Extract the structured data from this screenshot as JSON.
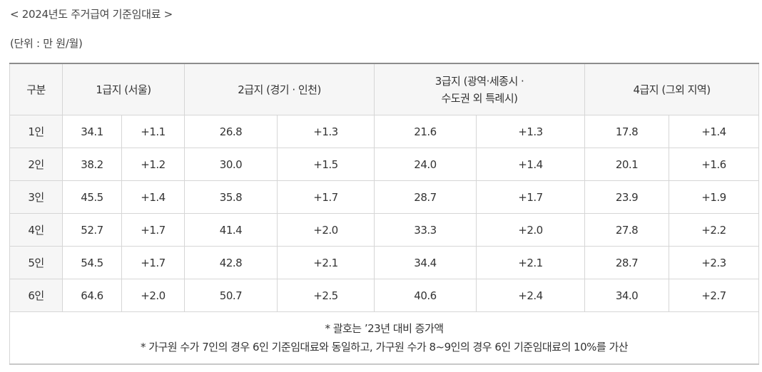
{
  "title": "< 2024년도 주거급여 기준임대료 >",
  "unit": "(단위 : 만 원/월)",
  "header": {
    "category": "구분",
    "grade1": "1급지 (서울)",
    "grade2": "2급지 (경기 · 인천)",
    "grade3_line1": "3급지 (광역·세종시 ·",
    "grade3_line2": "수도권 외 특례시)",
    "grade4": "4급지 (그외 지역)"
  },
  "rows": [
    {
      "label": "1인",
      "g1": "34.1",
      "g1d": "+1.1",
      "g2": "26.8",
      "g2d": "+1.3",
      "g3": "21.6",
      "g3d": "+1.3",
      "g4": "17.8",
      "g4d": "+1.4"
    },
    {
      "label": "2인",
      "g1": "38.2",
      "g1d": "+1.2",
      "g2": "30.0",
      "g2d": "+1.5",
      "g3": "24.0",
      "g3d": "+1.4",
      "g4": "20.1",
      "g4d": "+1.6"
    },
    {
      "label": "3인",
      "g1": "45.5",
      "g1d": "+1.4",
      "g2": "35.8",
      "g2d": "+1.7",
      "g3": "28.7",
      "g3d": "+1.7",
      "g4": "23.9",
      "g4d": "+1.9"
    },
    {
      "label": "4인",
      "g1": "52.7",
      "g1d": "+1.7",
      "g2": "41.4",
      "g2d": "+2.0",
      "g3": "33.3",
      "g3d": "+2.0",
      "g4": "27.8",
      "g4d": "+2.2"
    },
    {
      "label": "5인",
      "g1": "54.5",
      "g1d": "+1.7",
      "g2": "42.8",
      "g2d": "+2.1",
      "g3": "34.4",
      "g3d": "+2.1",
      "g4": "28.7",
      "g4d": "+2.3"
    },
    {
      "label": "6인",
      "g1": "64.6",
      "g1d": "+2.0",
      "g2": "50.7",
      "g2d": "+2.5",
      "g3": "40.6",
      "g3d": "+2.4",
      "g4": "34.0",
      "g4d": "+2.7"
    }
  ],
  "notes": {
    "note1": "* 괄호는 ’23년 대비 증가액",
    "note2": "* 가구원 수가 7인의 경우 6인 기준임대료와 동일하고, 가구원 수가 8~9인의 경우 6인 기준임대료의 10%를 가산"
  }
}
